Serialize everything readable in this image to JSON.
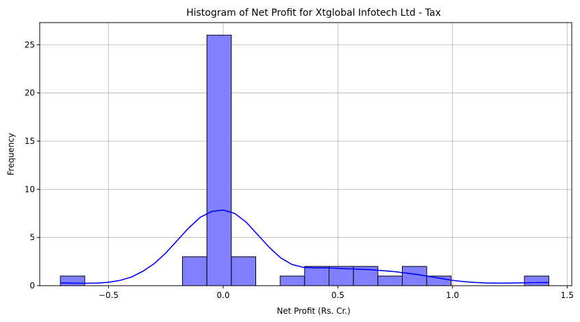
{
  "chart_data": {
    "type": "bar",
    "title": "Histogram of Net Profit for Xtglobal Infotech Ltd - Tax",
    "xlabel": "Net Profit (Rs. Cr.)",
    "ylabel": "Frequency",
    "xlim": [
      -0.8,
      1.52
    ],
    "ylim": [
      0,
      27.3
    ],
    "xticks": [
      -0.5,
      0.0,
      0.5,
      1.0,
      1.5
    ],
    "xtick_labels": [
      "−0.5",
      "0.0",
      "0.5",
      "1.0",
      "1.5"
    ],
    "yticks": [
      0,
      5,
      10,
      15,
      20,
      25
    ],
    "ytick_labels": [
      "0",
      "5",
      "10",
      "15",
      "20",
      "25"
    ],
    "grid": true,
    "bins": [
      {
        "x0": -0.71,
        "x1": -0.6035,
        "count": 1
      },
      {
        "x0": -0.6035,
        "x1": -0.497,
        "count": 0
      },
      {
        "x0": -0.497,
        "x1": -0.3905,
        "count": 0
      },
      {
        "x0": -0.3905,
        "x1": -0.284,
        "count": 0
      },
      {
        "x0": -0.284,
        "x1": -0.1775,
        "count": 0
      },
      {
        "x0": -0.1775,
        "x1": -0.071,
        "count": 3
      },
      {
        "x0": -0.071,
        "x1": 0.0355,
        "count": 26
      },
      {
        "x0": 0.0355,
        "x1": 0.142,
        "count": 3
      },
      {
        "x0": 0.142,
        "x1": 0.2485,
        "count": 0
      },
      {
        "x0": 0.2485,
        "x1": 0.355,
        "count": 1
      },
      {
        "x0": 0.355,
        "x1": 0.4615,
        "count": 2
      },
      {
        "x0": 0.4615,
        "x1": 0.568,
        "count": 2
      },
      {
        "x0": 0.568,
        "x1": 0.6745,
        "count": 2
      },
      {
        "x0": 0.6745,
        "x1": 0.781,
        "count": 1
      },
      {
        "x0": 0.781,
        "x1": 0.8875,
        "count": 2
      },
      {
        "x0": 0.8875,
        "x1": 0.994,
        "count": 1
      },
      {
        "x0": 0.994,
        "x1": 1.1005,
        "count": 0
      },
      {
        "x0": 1.1005,
        "x1": 1.207,
        "count": 0
      },
      {
        "x0": 1.207,
        "x1": 1.3135,
        "count": 0
      },
      {
        "x0": 1.3135,
        "x1": 1.42,
        "count": 1
      }
    ],
    "kde": {
      "x": [
        -0.71,
        -0.65,
        -0.6,
        -0.55,
        -0.5,
        -0.45,
        -0.4,
        -0.35,
        -0.3,
        -0.25,
        -0.2,
        -0.15,
        -0.1,
        -0.05,
        0.0,
        0.05,
        0.1,
        0.15,
        0.2,
        0.25,
        0.3,
        0.35,
        0.4,
        0.45,
        0.5,
        0.55,
        0.6,
        0.65,
        0.7,
        0.75,
        0.8,
        0.85,
        0.9,
        0.95,
        1.0,
        1.05,
        1.1,
        1.15,
        1.2,
        1.25,
        1.3,
        1.35,
        1.42
      ],
      "y": [
        0.3,
        0.26,
        0.25,
        0.27,
        0.35,
        0.55,
        0.9,
        1.5,
        2.3,
        3.4,
        4.7,
        6.0,
        7.1,
        7.7,
        7.85,
        7.5,
        6.6,
        5.3,
        4.0,
        2.9,
        2.2,
        1.9,
        1.85,
        1.85,
        1.8,
        1.75,
        1.7,
        1.65,
        1.55,
        1.45,
        1.3,
        1.15,
        0.95,
        0.75,
        0.55,
        0.42,
        0.33,
        0.28,
        0.26,
        0.27,
        0.3,
        0.32,
        0.33
      ]
    },
    "colors": {
      "bar_fill": "#8080ff",
      "bar_edge": "#000000",
      "kde_line": "#0000ff",
      "grid": "#b0b0b0"
    }
  }
}
